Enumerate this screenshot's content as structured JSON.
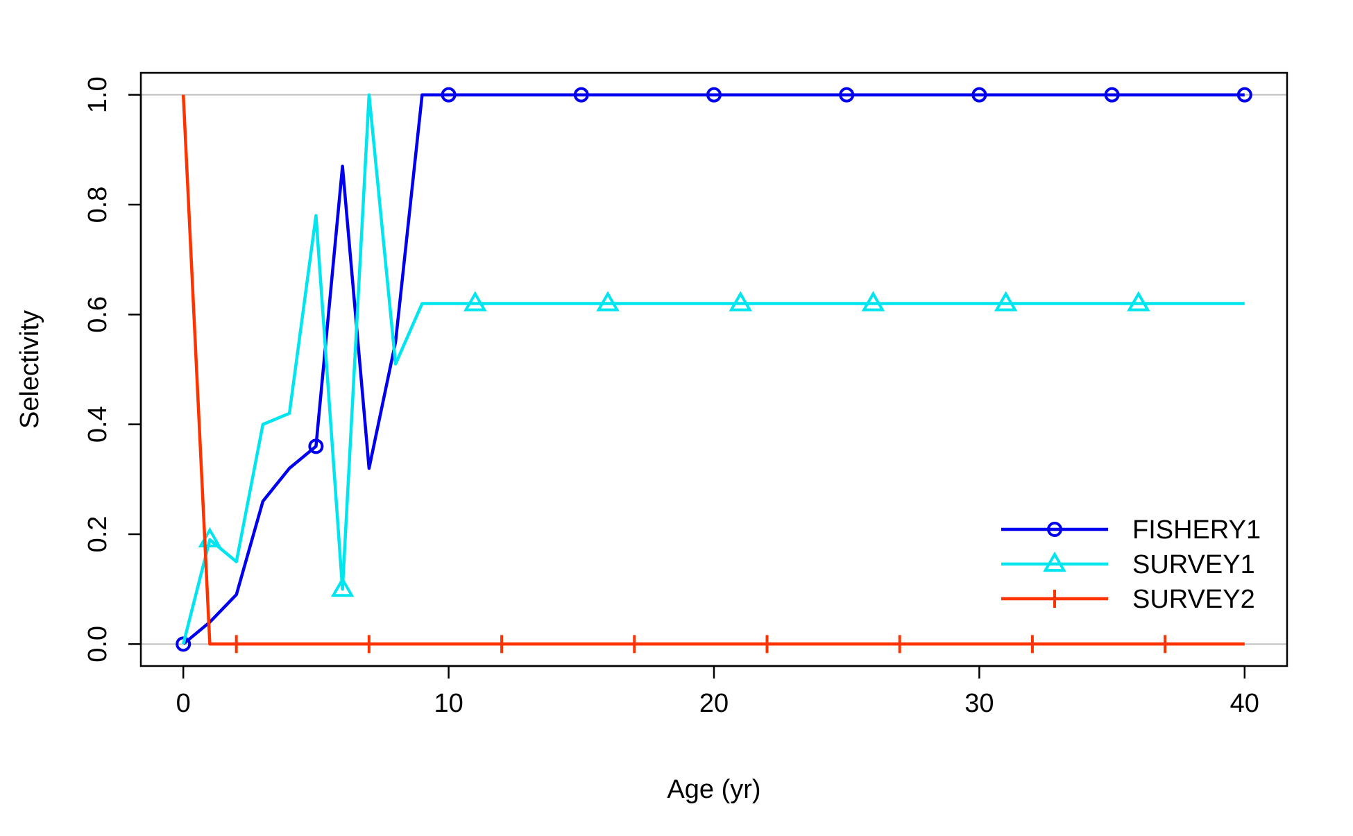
{
  "chart_data": {
    "type": "line",
    "title": "",
    "xlabel": "Age (yr)",
    "ylabel": "Selectivity",
    "xlim": [
      -1.6,
      41.6
    ],
    "ylim": [
      -0.04,
      1.04
    ],
    "xticks": [
      0,
      10,
      20,
      30,
      40
    ],
    "xtick_labels": [
      "0",
      "10",
      "20",
      "30",
      "40"
    ],
    "yticks": [
      0.0,
      0.2,
      0.4,
      0.6,
      0.8,
      1.0
    ],
    "ytick_labels": [
      "0.0",
      "0.2",
      "0.4",
      "0.6",
      "0.8",
      "1.0"
    ],
    "reference_lines": [
      0,
      1
    ],
    "legend_position": "bottom-right",
    "x": [
      0,
      1,
      2,
      3,
      4,
      5,
      6,
      7,
      8,
      9,
      10,
      11,
      12,
      13,
      14,
      15,
      16,
      17,
      18,
      19,
      20,
      21,
      22,
      23,
      24,
      25,
      26,
      27,
      28,
      29,
      30,
      31,
      32,
      33,
      34,
      35,
      36,
      37,
      38,
      39,
      40
    ],
    "series": [
      {
        "name": "FISHERY1",
        "color": "#0000ee",
        "marker": "circle",
        "marker_x": [
          0,
          5,
          10,
          15,
          20,
          25,
          30,
          35,
          40
        ],
        "values": [
          0.0,
          0.04,
          0.09,
          0.26,
          0.32,
          0.36,
          0.87,
          0.32,
          0.55,
          1.0,
          1.0,
          1.0,
          1.0,
          1.0,
          1.0,
          1.0,
          1.0,
          1.0,
          1.0,
          1.0,
          1.0,
          1.0,
          1.0,
          1.0,
          1.0,
          1.0,
          1.0,
          1.0,
          1.0,
          1.0,
          1.0,
          1.0,
          1.0,
          1.0,
          1.0,
          1.0,
          1.0,
          1.0,
          1.0,
          1.0,
          1.0
        ]
      },
      {
        "name": "SURVEY1",
        "color": "#00e5ee",
        "marker": "triangle",
        "marker_x": [
          1,
          6,
          11,
          16,
          21,
          26,
          31,
          36
        ],
        "values": [
          0.0,
          0.19,
          0.15,
          0.4,
          0.42,
          0.78,
          0.1,
          1.0,
          0.51,
          0.62,
          0.62,
          0.62,
          0.62,
          0.62,
          0.62,
          0.62,
          0.62,
          0.62,
          0.62,
          0.62,
          0.62,
          0.62,
          0.62,
          0.62,
          0.62,
          0.62,
          0.62,
          0.62,
          0.62,
          0.62,
          0.62,
          0.62,
          0.62,
          0.62,
          0.62,
          0.62,
          0.62,
          0.62,
          0.62,
          0.62,
          0.62
        ]
      },
      {
        "name": "SURVEY2",
        "color": "#ff3300",
        "marker": "plus",
        "marker_x": [
          2,
          7,
          12,
          17,
          22,
          27,
          32,
          37
        ],
        "values": [
          1.0,
          0.0,
          0.0,
          0.0,
          0.0,
          0.0,
          0.0,
          0.0,
          0.0,
          0.0,
          0.0,
          0.0,
          0.0,
          0.0,
          0.0,
          0.0,
          0.0,
          0.0,
          0.0,
          0.0,
          0.0,
          0.0,
          0.0,
          0.0,
          0.0,
          0.0,
          0.0,
          0.0,
          0.0,
          0.0,
          0.0,
          0.0,
          0.0,
          0.0,
          0.0,
          0.0,
          0.0,
          0.0,
          0.0,
          0.0,
          0.0
        ]
      }
    ]
  }
}
